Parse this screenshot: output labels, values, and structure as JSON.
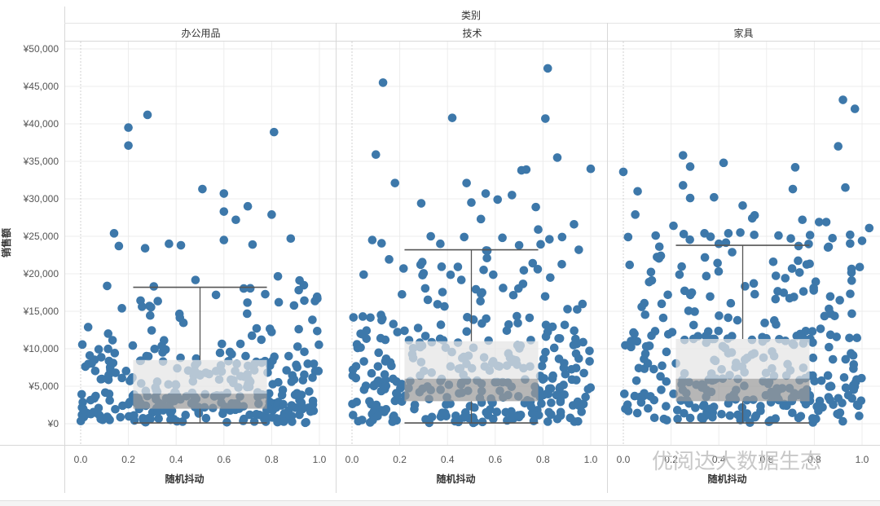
{
  "chart_data": {
    "type": "scatter",
    "column_title": "类别",
    "ylabel": "销售额",
    "xlabel": "随机抖动",
    "ylim": [
      -3500,
      50000
    ],
    "xlim": [
      -0.08,
      1.08
    ],
    "y_ticks": [
      "¥0",
      "¥5,000",
      "¥10,000",
      "¥15,000",
      "¥20,000",
      "¥25,000",
      "¥30,000",
      "¥35,000",
      "¥40,000",
      "¥45,000",
      "¥50,000"
    ],
    "x_ticks": [
      "0.0",
      "0.2",
      "0.4",
      "0.6",
      "0.8",
      "1.0"
    ],
    "point_color": "#3d78aa",
    "box_color": "#cfcfcf",
    "grid": true,
    "panels": [
      {
        "category": "办公用品",
        "box": {
          "whisker_low": 100,
          "q1": 2000,
          "median": 4000,
          "q3": 8500,
          "whisker_high": 18200
        },
        "outliers": [
          {
            "x": 0.2,
            "y": 39500
          },
          {
            "x": 0.28,
            "y": 41200
          },
          {
            "x": 0.2,
            "y": 37100
          },
          {
            "x": 0.81,
            "y": 38900
          },
          {
            "x": 0.51,
            "y": 31300
          },
          {
            "x": 0.6,
            "y": 30700
          },
          {
            "x": 0.7,
            "y": 29000
          },
          {
            "x": 0.6,
            "y": 28300
          },
          {
            "x": 0.8,
            "y": 27900
          },
          {
            "x": 0.65,
            "y": 27200
          },
          {
            "x": 0.14,
            "y": 25400
          },
          {
            "x": 0.88,
            "y": 24700
          },
          {
            "x": 0.6,
            "y": 24500
          },
          {
            "x": 0.27,
            "y": 23400
          },
          {
            "x": 0.16,
            "y": 23700
          },
          {
            "x": 0.72,
            "y": 23900
          },
          {
            "x": 0.37,
            "y": 24000
          },
          {
            "x": 0.42,
            "y": 23800
          }
        ]
      },
      {
        "category": "技术",
        "box": {
          "whisker_low": 100,
          "q1": 3000,
          "median": 6000,
          "q3": 11000,
          "whisker_high": 23200
        },
        "outliers": [
          {
            "x": 0.82,
            "y": 47400
          },
          {
            "x": 0.13,
            "y": 45500
          },
          {
            "x": 0.42,
            "y": 40800
          },
          {
            "x": 0.81,
            "y": 40700
          },
          {
            "x": 0.1,
            "y": 35900
          },
          {
            "x": 0.86,
            "y": 35500
          },
          {
            "x": 1.0,
            "y": 34000
          },
          {
            "x": 0.71,
            "y": 33800
          },
          {
            "x": 0.73,
            "y": 33900
          },
          {
            "x": 0.18,
            "y": 32100
          },
          {
            "x": 0.48,
            "y": 32100
          },
          {
            "x": 0.56,
            "y": 30700
          },
          {
            "x": 0.67,
            "y": 30500
          },
          {
            "x": 0.61,
            "y": 29900
          },
          {
            "x": 0.29,
            "y": 29400
          },
          {
            "x": 0.5,
            "y": 29500
          },
          {
            "x": 0.77,
            "y": 28900
          },
          {
            "x": 0.54,
            "y": 27300
          },
          {
            "x": 0.93,
            "y": 26600
          },
          {
            "x": 0.78,
            "y": 25900
          },
          {
            "x": 0.33,
            "y": 25000
          },
          {
            "x": 0.47,
            "y": 24900
          },
          {
            "x": 0.63,
            "y": 24800
          },
          {
            "x": 0.88,
            "y": 24900
          },
          {
            "x": 0.37,
            "y": 24000
          },
          {
            "x": 0.7,
            "y": 23800
          },
          {
            "x": 0.95,
            "y": 23200
          }
        ]
      },
      {
        "category": "家具",
        "box": {
          "whisker_low": 100,
          "q1": 3000,
          "median": 6000,
          "q3": 11300,
          "whisker_high": 23800
        },
        "outliers": [
          {
            "x": 0.92,
            "y": 43200
          },
          {
            "x": 0.97,
            "y": 42000
          },
          {
            "x": 0.9,
            "y": 37000
          },
          {
            "x": 0.25,
            "y": 35800
          },
          {
            "x": 0.0,
            "y": 33600
          },
          {
            "x": 0.42,
            "y": 34800
          },
          {
            "x": 0.28,
            "y": 34300
          },
          {
            "x": 0.72,
            "y": 34200
          },
          {
            "x": 0.25,
            "y": 31800
          },
          {
            "x": 0.06,
            "y": 31000
          },
          {
            "x": 0.93,
            "y": 31500
          },
          {
            "x": 0.71,
            "y": 31300
          },
          {
            "x": 0.28,
            "y": 30100
          },
          {
            "x": 0.38,
            "y": 30200
          },
          {
            "x": 0.5,
            "y": 29100
          },
          {
            "x": 0.55,
            "y": 27800
          },
          {
            "x": 0.05,
            "y": 27900
          },
          {
            "x": 0.85,
            "y": 26900
          },
          {
            "x": 0.75,
            "y": 27200
          },
          {
            "x": 0.82,
            "y": 26900
          },
          {
            "x": 0.21,
            "y": 26400
          },
          {
            "x": 1.03,
            "y": 26100
          },
          {
            "x": 0.54,
            "y": 27400
          },
          {
            "x": 0.34,
            "y": 25400
          },
          {
            "x": 0.44,
            "y": 25400
          },
          {
            "x": 0.49,
            "y": 25500
          },
          {
            "x": 0.65,
            "y": 25100
          },
          {
            "x": 0.95,
            "y": 25200
          },
          {
            "x": 0.02,
            "y": 24900
          },
          {
            "x": 1.0,
            "y": 24400
          },
          {
            "x": 0.4,
            "y": 24000
          },
          {
            "x": 0.86,
            "y": 23600
          }
        ]
      }
    ]
  },
  "watermark": "优阅达大数据生态"
}
